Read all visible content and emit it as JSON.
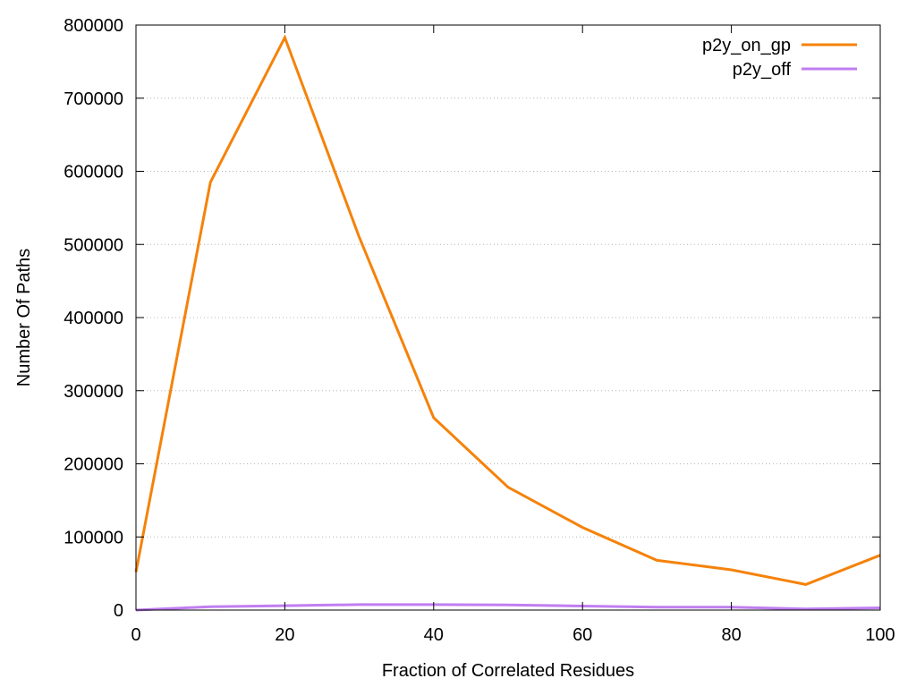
{
  "chart_data": {
    "type": "line",
    "xlabel": "Fraction of Correlated Residues",
    "ylabel": "Number Of Paths",
    "xlim": [
      0,
      100
    ],
    "ylim": [
      0,
      800000
    ],
    "xticks": [
      0,
      20,
      40,
      60,
      80,
      100
    ],
    "yticks": [
      0,
      100000,
      200000,
      300000,
      400000,
      500000,
      600000,
      700000,
      800000
    ],
    "grid": "horizontal dotted",
    "legend": "top-right",
    "x": [
      0,
      10,
      20,
      30,
      40,
      50,
      60,
      70,
      80,
      90,
      100
    ],
    "series": [
      {
        "name": "p2y_on_gp",
        "color": "#f5820a",
        "values": [
          52000,
          585000,
          783000,
          510000,
          263000,
          168000,
          113000,
          68000,
          55000,
          35000,
          75000
        ]
      },
      {
        "name": "p2y_off",
        "color": "#c07ef0",
        "values": [
          0,
          4500,
          6000,
          7500,
          7500,
          7000,
          5500,
          4000,
          4000,
          1500,
          3000
        ]
      }
    ]
  }
}
